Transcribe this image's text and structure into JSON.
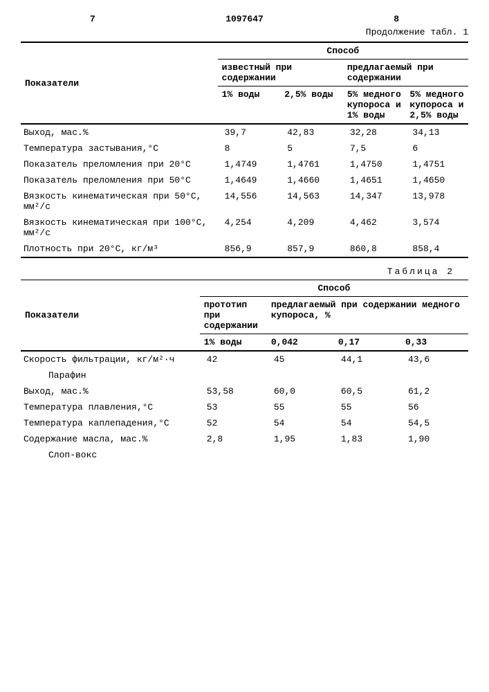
{
  "header": {
    "page_left": "7",
    "doc_number": "1097647",
    "page_right": "8",
    "continuation": "Продолжение табл. 1"
  },
  "table1": {
    "col_group_title": "Способ",
    "row_header": "Показатели",
    "col_group_left": "известный при содержании",
    "col_group_right": "предлагаемый при содержании",
    "cols": [
      "1% воды",
      "2,5% воды",
      "5% медного купороса и 1% воды",
      "5% медного купороса и 2,5% воды"
    ],
    "rows": [
      {
        "label": "Выход, мас.%",
        "vals": [
          "39,7",
          "42,83",
          "32,28",
          "34,13"
        ]
      },
      {
        "label": "Температура застывания,°С",
        "vals": [
          "8",
          "5",
          "7,5",
          "6"
        ]
      },
      {
        "label": "Показатель преломления при 20°С",
        "vals": [
          "1,4749",
          "1,4761",
          "1,4750",
          "1,4751"
        ]
      },
      {
        "label": "Показатель преломления при 50°С",
        "vals": [
          "1,4649",
          "1,4660",
          "1,4651",
          "1,4650"
        ]
      },
      {
        "label": "Вязкость кинематическая при 50°С, мм²/с",
        "vals": [
          "14,556",
          "14,563",
          "14,347",
          "13,978"
        ]
      },
      {
        "label": "Вязкость кинематическая при 100°С, мм²/с",
        "vals": [
          "4,254",
          "4,209",
          "4,462",
          "3,574"
        ]
      },
      {
        "label": "Плотность при 20°С, кг/м³",
        "vals": [
          "856,9",
          "857,9",
          "860,8",
          "858,4"
        ]
      }
    ]
  },
  "table2": {
    "title": "Таблица 2",
    "col_group_title": "Способ",
    "row_header": "Показатели",
    "col_left": "прототип при содержании",
    "col_right": "предлагаемый при содержании медного купороса, %",
    "cols": [
      "1% воды",
      "0,042",
      "0,17",
      "0,33"
    ],
    "rows_a": [
      {
        "label": "Скорость фильтрации, кг/м²·ч",
        "vals": [
          "42",
          "45",
          "44,1",
          "43,6"
        ]
      }
    ],
    "section1": "Парафин",
    "rows_b": [
      {
        "label": "Выход, мас.%",
        "vals": [
          "53,58",
          "60,0",
          "60,5",
          "61,2"
        ]
      },
      {
        "label": "Температура плавления,°С",
        "vals": [
          "53",
          "55",
          "55",
          "56"
        ]
      },
      {
        "label": "Температура каплепадения,°С",
        "vals": [
          "52",
          "54",
          "54",
          "54,5"
        ]
      },
      {
        "label": "Содержание масла, мас.%",
        "vals": [
          "2,8",
          "1,95",
          "1,83",
          "1,90"
        ]
      }
    ],
    "section2": "Слоп-вокс"
  }
}
